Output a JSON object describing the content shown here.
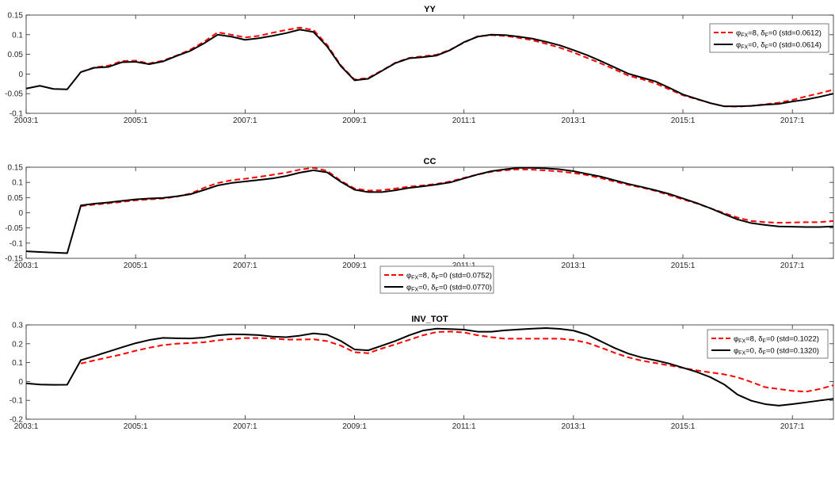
{
  "chart_data": [
    {
      "type": "line",
      "title": "YY",
      "ylim": [
        -0.1,
        0.15
      ],
      "yticks": [
        -0.1,
        -0.05,
        0,
        0.05,
        0.1,
        0.15
      ],
      "ytick_labels": [
        "-0.1",
        "-0.05",
        "0",
        "0.05",
        "0.1",
        "0.15"
      ],
      "xlim": [
        2003.0,
        2017.75
      ],
      "xticks": [
        2003,
        2005,
        2007,
        2009,
        2011,
        2013,
        2015,
        2017
      ],
      "xtick_labels": [
        "2003:1",
        "2005:1",
        "2007:1",
        "2009:1",
        "2011:1",
        "2013:1",
        "2015:1",
        "2017:1"
      ],
      "grid": false,
      "legend_position": "top-right",
      "series": [
        {
          "legend": {
            "sym": "φ",
            "sub1": "FX",
            "a": "=8, ",
            "sym2": "δ",
            "sub2": "F",
            "b": "=0 (std=0.0612)"
          },
          "color": "#ff0000",
          "style": "dashed",
          "x": [
            2004.0,
            2004.25,
            2004.5,
            2004.75,
            2005.0,
            2005.25,
            2005.5,
            2005.75,
            2006.0,
            2006.25,
            2006.5,
            2006.75,
            2007.0,
            2007.25,
            2007.5,
            2007.75,
            2008.0,
            2008.25,
            2008.5,
            2008.75,
            2009.0,
            2009.25,
            2009.5,
            2009.75,
            2010.0,
            2010.25,
            2010.5,
            2010.75,
            2011.0,
            2011.25,
            2011.5,
            2011.75,
            2012.0,
            2012.25,
            2012.5,
            2012.75,
            2013.0,
            2013.25,
            2013.5,
            2013.75,
            2014.0,
            2014.25,
            2014.5,
            2014.75,
            2015.0,
            2015.25,
            2015.5,
            2015.75,
            2016.0,
            2016.25,
            2016.5,
            2016.75,
            2017.0,
            2017.25,
            2017.5,
            2017.75
          ],
          "y": [
            0.005,
            0.017,
            0.021,
            0.033,
            0.034,
            0.027,
            0.034,
            0.047,
            0.062,
            0.082,
            0.106,
            0.1,
            0.093,
            0.097,
            0.105,
            0.112,
            0.118,
            0.112,
            0.074,
            0.022,
            -0.014,
            -0.01,
            0.009,
            0.029,
            0.041,
            0.045,
            0.049,
            0.062,
            0.08,
            0.096,
            0.099,
            0.097,
            0.092,
            0.086,
            0.077,
            0.067,
            0.055,
            0.041,
            0.027,
            0.012,
            -0.004,
            -0.013,
            -0.024,
            -0.039,
            -0.054,
            -0.064,
            -0.074,
            -0.082,
            -0.083,
            -0.081,
            -0.077,
            -0.073,
            -0.066,
            -0.057,
            -0.049,
            -0.04
          ]
        },
        {
          "legend": {
            "sym": "φ",
            "sub1": "FX",
            "a": "=0, ",
            "sym2": "δ",
            "sub2": "F",
            "b": "=0 (std=0.0614)"
          },
          "color": "#000000",
          "style": "solid",
          "x": [
            2003.0,
            2003.25,
            2003.5,
            2003.75,
            2004.0,
            2004.25,
            2004.5,
            2004.75,
            2005.0,
            2005.25,
            2005.5,
            2005.75,
            2006.0,
            2006.25,
            2006.5,
            2006.75,
            2007.0,
            2007.25,
            2007.5,
            2007.75,
            2008.0,
            2008.25,
            2008.5,
            2008.75,
            2009.0,
            2009.25,
            2009.5,
            2009.75,
            2010.0,
            2010.25,
            2010.5,
            2010.75,
            2011.0,
            2011.25,
            2011.5,
            2011.75,
            2012.0,
            2012.25,
            2012.5,
            2012.75,
            2013.0,
            2013.25,
            2013.5,
            2013.75,
            2014.0,
            2014.25,
            2014.5,
            2014.75,
            2015.0,
            2015.25,
            2015.5,
            2015.75,
            2016.0,
            2016.25,
            2016.5,
            2016.75,
            2017.0,
            2017.25,
            2017.5,
            2017.75
          ],
          "y": [
            -0.037,
            -0.03,
            -0.038,
            -0.039,
            0.005,
            0.016,
            0.018,
            0.03,
            0.031,
            0.025,
            0.032,
            0.046,
            0.059,
            0.078,
            0.1,
            0.095,
            0.087,
            0.091,
            0.097,
            0.104,
            0.113,
            0.107,
            0.07,
            0.02,
            -0.016,
            -0.012,
            0.008,
            0.028,
            0.04,
            0.043,
            0.047,
            0.061,
            0.081,
            0.095,
            0.1,
            0.099,
            0.095,
            0.09,
            0.082,
            0.073,
            0.061,
            0.048,
            0.033,
            0.017,
            0.001,
            -0.009,
            -0.019,
            -0.035,
            -0.052,
            -0.063,
            -0.074,
            -0.082,
            -0.082,
            -0.081,
            -0.078,
            -0.076,
            -0.07,
            -0.065,
            -0.058,
            -0.05
          ]
        }
      ]
    },
    {
      "type": "line",
      "title": "CC",
      "ylim": [
        -0.15,
        0.15
      ],
      "yticks": [
        -0.15,
        -0.1,
        -0.05,
        0,
        0.05,
        0.1,
        0.15
      ],
      "ytick_labels": [
        "-0.15",
        "-0.1",
        "-0.05",
        "0",
        "0.05",
        "0.1",
        "0.15"
      ],
      "xlim": [
        2003.0,
        2017.75
      ],
      "xticks": [
        2003,
        2005,
        2007,
        2009,
        2011,
        2013,
        2015,
        2017
      ],
      "xtick_labels": [
        "2003:1",
        "2005:1",
        "2007:1",
        "2009:1",
        "2011:1",
        "2013:1",
        "2015:1",
        "2017:1"
      ],
      "grid": false,
      "legend_position": "bottom-center",
      "series": [
        {
          "legend": {
            "sym": "φ",
            "sub1": "FX",
            "a": "=8, ",
            "sym2": "δ",
            "sub2": "F",
            "b": "=0 (std=0.0752)"
          },
          "color": "#ff0000",
          "style": "dashed",
          "x": [
            2004.0,
            2004.25,
            2004.5,
            2004.75,
            2005.0,
            2005.25,
            2005.5,
            2005.75,
            2006.0,
            2006.25,
            2006.5,
            2006.75,
            2007.0,
            2007.25,
            2007.5,
            2007.75,
            2008.0,
            2008.25,
            2008.5,
            2008.75,
            2009.0,
            2009.25,
            2009.5,
            2009.75,
            2010.0,
            2010.25,
            2010.5,
            2010.75,
            2011.0,
            2011.25,
            2011.5,
            2011.75,
            2012.0,
            2012.25,
            2012.5,
            2012.75,
            2013.0,
            2013.25,
            2013.5,
            2013.75,
            2014.0,
            2014.25,
            2014.5,
            2014.75,
            2015.0,
            2015.25,
            2015.5,
            2015.75,
            2016.0,
            2016.25,
            2016.5,
            2016.75,
            2017.0,
            2017.25,
            2017.5,
            2017.75
          ],
          "y": [
            0.022,
            0.027,
            0.031,
            0.036,
            0.041,
            0.044,
            0.047,
            0.053,
            0.063,
            0.082,
            0.098,
            0.107,
            0.112,
            0.118,
            0.125,
            0.132,
            0.142,
            0.148,
            0.138,
            0.105,
            0.08,
            0.073,
            0.074,
            0.08,
            0.086,
            0.09,
            0.095,
            0.103,
            0.115,
            0.126,
            0.135,
            0.14,
            0.143,
            0.142,
            0.139,
            0.136,
            0.131,
            0.124,
            0.114,
            0.103,
            0.092,
            0.083,
            0.072,
            0.058,
            0.044,
            0.031,
            0.015,
            -0.001,
            -0.016,
            -0.027,
            -0.031,
            -0.033,
            -0.032,
            -0.031,
            -0.031,
            -0.027
          ]
        },
        {
          "legend": {
            "sym": "φ",
            "sub1": "FX",
            "a": "=0, ",
            "sym2": "δ",
            "sub2": "F",
            "b": "=0 (std=0.0770)"
          },
          "color": "#000000",
          "style": "solid",
          "x": [
            2003.0,
            2003.25,
            2003.5,
            2003.75,
            2004.0,
            2004.25,
            2004.5,
            2004.75,
            2005.0,
            2005.25,
            2005.5,
            2005.75,
            2006.0,
            2006.25,
            2006.5,
            2006.75,
            2007.0,
            2007.25,
            2007.5,
            2007.75,
            2008.0,
            2008.25,
            2008.5,
            2008.75,
            2009.0,
            2009.25,
            2009.5,
            2009.75,
            2010.0,
            2010.25,
            2010.5,
            2010.75,
            2011.0,
            2011.25,
            2011.5,
            2011.75,
            2012.0,
            2012.25,
            2012.5,
            2012.75,
            2013.0,
            2013.25,
            2013.5,
            2013.75,
            2014.0,
            2014.25,
            2014.5,
            2014.75,
            2015.0,
            2015.25,
            2015.5,
            2015.75,
            2016.0,
            2016.25,
            2016.5,
            2016.75,
            2017.0,
            2017.25,
            2017.5,
            2017.75
          ],
          "y": [
            -0.127,
            -0.129,
            -0.131,
            -0.133,
            0.024,
            0.03,
            0.034,
            0.039,
            0.044,
            0.047,
            0.049,
            0.054,
            0.061,
            0.075,
            0.09,
            0.098,
            0.103,
            0.108,
            0.113,
            0.121,
            0.132,
            0.14,
            0.133,
            0.102,
            0.076,
            0.068,
            0.068,
            0.074,
            0.082,
            0.087,
            0.093,
            0.1,
            0.113,
            0.126,
            0.137,
            0.143,
            0.148,
            0.148,
            0.146,
            0.143,
            0.137,
            0.128,
            0.119,
            0.107,
            0.095,
            0.085,
            0.074,
            0.062,
            0.047,
            0.032,
            0.015,
            -0.004,
            -0.022,
            -0.034,
            -0.04,
            -0.045,
            -0.046,
            -0.047,
            -0.047,
            -0.045
          ]
        }
      ]
    },
    {
      "type": "line",
      "title": "INV_TOT",
      "ylim": [
        -0.2,
        0.3
      ],
      "yticks": [
        -0.2,
        -0.1,
        0,
        0.1,
        0.2,
        0.3
      ],
      "ytick_labels": [
        "-0.2",
        "-0.1",
        "0",
        "0.1",
        "0.2",
        "0.3"
      ],
      "xlim": [
        2003.0,
        2017.75
      ],
      "xticks": [
        2003,
        2005,
        2007,
        2009,
        2011,
        2013,
        2015,
        2017
      ],
      "xtick_labels": [
        "2003:1",
        "2005:1",
        "2007:1",
        "2009:1",
        "2011:1",
        "2013:1",
        "2015:1",
        "2017:1"
      ],
      "grid": false,
      "legend_position": "top-right",
      "series": [
        {
          "legend": {
            "sym": "φ",
            "sub1": "FX",
            "a": "=8, ",
            "sym2": "δ",
            "sub2": "F",
            "b": "=0 (std=0.1022)"
          },
          "color": "#ff0000",
          "style": "dashed",
          "x": [
            2004.0,
            2004.25,
            2004.5,
            2004.75,
            2005.0,
            2005.25,
            2005.5,
            2005.75,
            2006.0,
            2006.25,
            2006.5,
            2006.75,
            2007.0,
            2007.25,
            2007.5,
            2007.75,
            2008.0,
            2008.25,
            2008.5,
            2008.75,
            2009.0,
            2009.25,
            2009.5,
            2009.75,
            2010.0,
            2010.25,
            2010.5,
            2010.75,
            2011.0,
            2011.25,
            2011.5,
            2011.75,
            2012.0,
            2012.25,
            2012.5,
            2012.75,
            2013.0,
            2013.25,
            2013.5,
            2013.75,
            2014.0,
            2014.25,
            2014.5,
            2014.75,
            2015.0,
            2015.25,
            2015.5,
            2015.75,
            2016.0,
            2016.25,
            2016.5,
            2016.75,
            2017.0,
            2017.25,
            2017.5,
            2017.75
          ],
          "y": [
            0.095,
            0.112,
            0.128,
            0.144,
            0.163,
            0.179,
            0.193,
            0.2,
            0.204,
            0.208,
            0.218,
            0.225,
            0.23,
            0.23,
            0.228,
            0.222,
            0.222,
            0.224,
            0.214,
            0.19,
            0.155,
            0.15,
            0.175,
            0.197,
            0.221,
            0.245,
            0.262,
            0.265,
            0.26,
            0.245,
            0.235,
            0.227,
            0.227,
            0.227,
            0.227,
            0.227,
            0.22,
            0.205,
            0.18,
            0.152,
            0.128,
            0.11,
            0.098,
            0.085,
            0.072,
            0.059,
            0.048,
            0.038,
            0.022,
            -0.003,
            -0.03,
            -0.04,
            -0.05,
            -0.054,
            -0.04,
            -0.02
          ]
        },
        {
          "legend": {
            "sym": "φ",
            "sub1": "FX",
            "a": "=0, ",
            "sym2": "δ",
            "sub2": "F",
            "b": "=0 (std=0.1320)"
          },
          "color": "#000000",
          "style": "solid",
          "x": [
            2003.0,
            2003.25,
            2003.5,
            2003.75,
            2004.0,
            2004.25,
            2004.5,
            2004.75,
            2005.0,
            2005.25,
            2005.5,
            2005.75,
            2006.0,
            2006.25,
            2006.5,
            2006.75,
            2007.0,
            2007.25,
            2007.5,
            2007.75,
            2008.0,
            2008.25,
            2008.5,
            2008.75,
            2009.0,
            2009.25,
            2009.5,
            2009.75,
            2010.0,
            2010.25,
            2010.5,
            2010.75,
            2011.0,
            2011.25,
            2011.5,
            2011.75,
            2012.0,
            2012.25,
            2012.5,
            2012.75,
            2013.0,
            2013.25,
            2013.5,
            2013.75,
            2014.0,
            2014.25,
            2014.5,
            2014.75,
            2015.0,
            2015.25,
            2015.5,
            2015.75,
            2016.0,
            2016.25,
            2016.5,
            2016.75,
            2017.0,
            2017.25,
            2017.5,
            2017.75
          ],
          "y": [
            -0.01,
            -0.016,
            -0.018,
            -0.017,
            0.113,
            0.135,
            0.158,
            0.181,
            0.203,
            0.22,
            0.231,
            0.229,
            0.228,
            0.233,
            0.245,
            0.25,
            0.249,
            0.246,
            0.238,
            0.235,
            0.243,
            0.255,
            0.248,
            0.215,
            0.17,
            0.165,
            0.19,
            0.215,
            0.245,
            0.27,
            0.28,
            0.278,
            0.275,
            0.264,
            0.264,
            0.271,
            0.276,
            0.28,
            0.283,
            0.279,
            0.27,
            0.248,
            0.213,
            0.178,
            0.148,
            0.127,
            0.112,
            0.095,
            0.073,
            0.051,
            0.023,
            -0.015,
            -0.07,
            -0.102,
            -0.12,
            -0.128,
            -0.12,
            -0.111,
            -0.101,
            -0.092
          ]
        }
      ]
    }
  ]
}
